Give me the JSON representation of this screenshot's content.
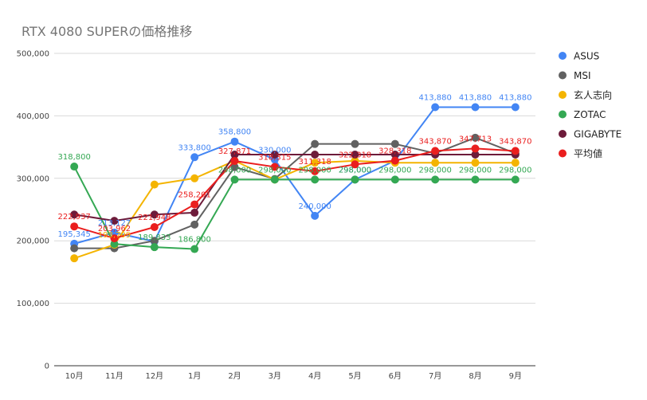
{
  "chart_data": {
    "type": "line",
    "title": "RTX 4080 SUPERの価格推移",
    "categories": [
      "10月",
      "11月",
      "12月",
      "1月",
      "2月",
      "3月",
      "4月",
      "5月",
      "6月",
      "7月",
      "8月",
      "9月"
    ],
    "ylim": [
      0,
      500000
    ],
    "yticks": [
      0,
      100000,
      200000,
      300000,
      400000,
      500000
    ],
    "ytick_labels": [
      "0",
      "100,000",
      "200,000",
      "300,000",
      "400,000",
      "500,000"
    ],
    "grid": true,
    "legend_position": "right",
    "series": [
      {
        "name": "ASUS",
        "color": "#4285F4",
        "values": [
          195345,
          213127,
          199000,
          333800,
          358800,
          330000,
          240000,
          298000,
          328318,
          413880,
          413880,
          413880
        ],
        "labels": [
          "195,345",
          "213,127",
          "",
          "333,800",
          "358,800",
          "330,000",
          "240,000",
          "298,000",
          "",
          "413,880",
          "413,880",
          "413,880"
        ]
      },
      {
        "name": "MSI",
        "color": "#616161",
        "values": [
          188000,
          188000,
          200000,
          226000,
          318000,
          299000,
          355000,
          355000,
          355000,
          340000,
          365000,
          340000
        ],
        "labels": [
          "",
          "",
          "",
          "",
          "",
          "",
          "",
          "",
          "",
          "",
          "",
          ""
        ]
      },
      {
        "name": "玄人志向",
        "color": "#F4B400",
        "values": [
          172000,
          193799,
          290000,
          300000,
          328000,
          298000,
          325000,
          328000,
          325000,
          325000,
          325000,
          325000
        ],
        "labels": [
          "",
          "193,799",
          "",
          "",
          "",
          "",
          "",
          "",
          "",
          "",
          "",
          ""
        ]
      },
      {
        "name": "ZOTAC",
        "color": "#34A853",
        "values": [
          318800,
          195000,
          189833,
          186800,
          298000,
          298000,
          298000,
          298000,
          298000,
          298000,
          298000,
          298000
        ],
        "labels": [
          "318,800",
          "",
          "189,833",
          "186,800",
          "298,000",
          "298,000",
          "298,000",
          "298,000",
          "298,000",
          "298,000",
          "298,000",
          "298,000"
        ]
      },
      {
        "name": "GIGABYTE",
        "color": "#6D1B3A",
        "values": [
          242000,
          232000,
          242000,
          245000,
          338000,
          338000,
          338000,
          338000,
          338000,
          338000,
          338000,
          338000
        ],
        "labels": [
          "",
          "",
          "",
          "",
          "",
          "",
          "",
          "",
          "",
          "",
          "",
          ""
        ]
      },
      {
        "name": "平均値",
        "color": "#EA1E1E",
        "values": [
          222937,
          203962,
          221948,
          258201,
          327871,
          318315,
          311318,
          322318,
          328318,
          343870,
          347713,
          343870
        ],
        "labels": [
          "222,937",
          "203,962",
          "221,948",
          "258,201",
          "327,871",
          "318,315",
          "311,318",
          "322,318",
          "328,318",
          "343,870",
          "347,713",
          "343,870"
        ]
      }
    ]
  }
}
